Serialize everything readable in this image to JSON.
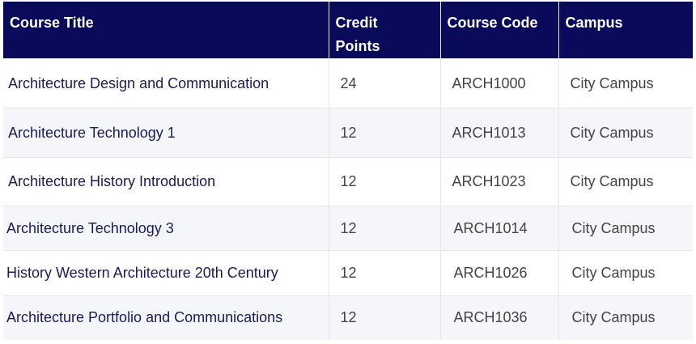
{
  "table": {
    "headers": {
      "title": "Course Title",
      "credit_line1": "Credit",
      "credit_line2": "Points",
      "code": "Course Code",
      "campus": "Campus"
    },
    "rows": [
      {
        "title": "Architecture Design and Communication",
        "credit": "24",
        "code": "ARCH1000",
        "campus": "City Campus"
      },
      {
        "title": "Architecture Technology 1",
        "credit": "12",
        "code": "ARCH1013",
        "campus": "City Campus"
      },
      {
        "title": "Architecture History Introduction",
        "credit": "12",
        "code": "ARCH1023",
        "campus": "City Campus"
      },
      {
        "title": "Architecture Technology 3",
        "credit": "12",
        "code": "ARCH1014",
        "campus": "City Campus"
      },
      {
        "title": "History Western Architecture 20th Century",
        "credit": "12",
        "code": "ARCH1026",
        "campus": "City Campus"
      },
      {
        "title": "Architecture Portfolio and Communications",
        "credit": "12",
        "code": "ARCH1036",
        "campus": "City Campus"
      }
    ]
  },
  "colors": {
    "header_bg": "#0a0a5a",
    "header_text": "#ffffff",
    "title_text": "#1a1a5a",
    "body_text": "#444444",
    "alt_row_bg": "#f5f6fa"
  }
}
